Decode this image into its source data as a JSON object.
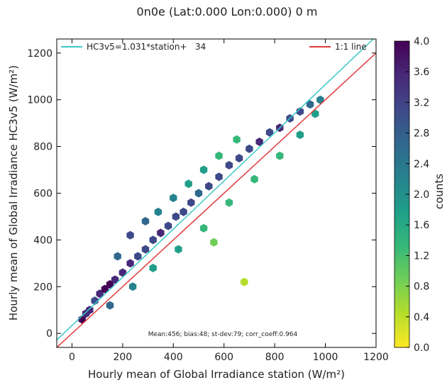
{
  "chart_data": {
    "type": "scatter",
    "title": "0n0e (Lat:0.000 Lon:0.000) 0 m",
    "xlabel": "Hourly mean of Global Irradiance station (W/m²)",
    "ylabel": "Hourly mean of Global Irradiance HC3v5 (W/m²)",
    "xlim": [
      -60,
      1200
    ],
    "ylim": [
      -60,
      1260
    ],
    "x_ticks": [
      "0",
      "200",
      "400",
      "600",
      "800",
      "1000",
      "1200"
    ],
    "y_ticks": [
      "0",
      "200",
      "400",
      "600",
      "800",
      "1000",
      "1200"
    ],
    "legend_placement": "top",
    "grid": false,
    "series": [
      {
        "name": "HC3v5=1.031*station+   34",
        "kind": "fit_line",
        "slope": 1.031,
        "intercept": 34,
        "color": "#3cc8c8"
      },
      {
        "name": "1:1 line",
        "kind": "reference_line",
        "slope": 1.0,
        "intercept": 0,
        "color": "#e03a3a"
      }
    ],
    "density": {
      "description": "hexbin density",
      "points": [
        [
          40,
          60,
          3.8
        ],
        [
          55,
          85,
          3.6
        ],
        [
          70,
          100,
          3.4
        ],
        [
          90,
          140,
          3.2
        ],
        [
          110,
          170,
          3.6
        ],
        [
          130,
          190,
          3.8
        ],
        [
          150,
          210,
          3.9
        ],
        [
          170,
          230,
          3.7
        ],
        [
          200,
          260,
          3.5
        ],
        [
          230,
          300,
          3.4
        ],
        [
          260,
          330,
          3.2
        ],
        [
          290,
          360,
          3.3
        ],
        [
          320,
          400,
          3.1
        ],
        [
          350,
          430,
          3.4
        ],
        [
          380,
          460,
          3.2
        ],
        [
          410,
          500,
          3.0
        ],
        [
          440,
          520,
          3.1
        ],
        [
          470,
          560,
          2.9
        ],
        [
          500,
          600,
          2.8
        ],
        [
          540,
          630,
          2.9
        ],
        [
          580,
          670,
          3.0
        ],
        [
          620,
          720,
          2.9
        ],
        [
          660,
          750,
          3.1
        ],
        [
          700,
          790,
          3.2
        ],
        [
          740,
          820,
          3.4
        ],
        [
          780,
          860,
          3.3
        ],
        [
          820,
          880,
          3.5
        ],
        [
          860,
          920,
          3.2
        ],
        [
          900,
          950,
          3.0
        ],
        [
          940,
          980,
          2.6
        ],
        [
          980,
          1000,
          2.0
        ],
        [
          180,
          330,
          2.8
        ],
        [
          230,
          420,
          3.0
        ],
        [
          290,
          480,
          2.6
        ],
        [
          340,
          520,
          2.4
        ],
        [
          400,
          580,
          2.0
        ],
        [
          460,
          640,
          1.8
        ],
        [
          520,
          700,
          1.6
        ],
        [
          580,
          760,
          1.4
        ],
        [
          650,
          830,
          1.2
        ],
        [
          150,
          120,
          2.6
        ],
        [
          240,
          200,
          2.2
        ],
        [
          320,
          280,
          1.8
        ],
        [
          420,
          360,
          1.6
        ],
        [
          520,
          450,
          1.4
        ],
        [
          620,
          560,
          1.3
        ],
        [
          720,
          660,
          1.2
        ],
        [
          820,
          760,
          1.4
        ],
        [
          900,
          850,
          1.6
        ],
        [
          960,
          940,
          1.8
        ],
        [
          680,
          220,
          0.6
        ],
        [
          560,
          390,
          0.8
        ]
      ]
    },
    "stats_annotation": "Mean:456; bias:48; st-dev:79; corr_coeff:0.964",
    "colorbar": {
      "label": "counts",
      "min": 0.0,
      "max": 4.0,
      "ticks": [
        "0.0",
        "0.4",
        "0.8",
        "1.2",
        "1.6",
        "2.0",
        "2.4",
        "2.8",
        "3.2",
        "3.6",
        "4.0"
      ],
      "colormap": [
        "#fde725",
        "#b5de2b",
        "#6ece58",
        "#35b779",
        "#1f9e89",
        "#26828e",
        "#31688e",
        "#3e4989",
        "#482878",
        "#440154"
      ]
    }
  }
}
